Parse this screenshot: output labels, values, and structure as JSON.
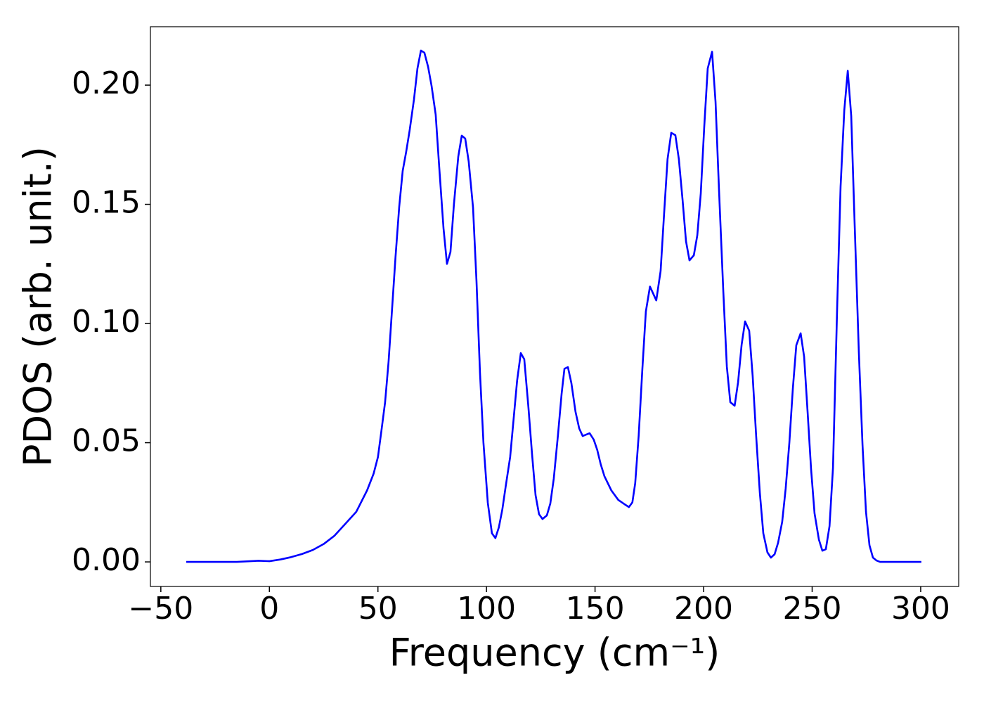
{
  "chart_data": {
    "type": "line",
    "xlabel": "Frequency (cm⁻¹)",
    "ylabel": "PDOS (arb. unit.)",
    "xlim": [
      -54.8,
      317.5
    ],
    "ylim": [
      -0.0103,
      0.2245
    ],
    "xticks": [
      {
        "value": -50,
        "label": "−50"
      },
      0,
      50,
      100,
      150,
      200,
      250,
      300
    ],
    "yticks": [
      {
        "value": 0,
        "label": "0.00"
      },
      {
        "value": 0.05,
        "label": "0.05"
      },
      {
        "value": 0.1,
        "label": "0.10"
      },
      {
        "value": 0.15,
        "label": "0.15"
      },
      {
        "value": 0.2,
        "label": "0.20"
      }
    ],
    "grid": false,
    "x": [
      -38.3,
      -15,
      -5,
      0,
      5,
      10,
      15,
      20,
      25,
      30,
      35,
      40,
      45,
      48,
      50.0,
      51.6,
      53.3,
      54.9,
      56.5,
      58.1,
      59.8,
      61.4,
      63.0,
      64.6,
      66.6,
      68.2,
      69.8,
      71.4,
      73.1,
      74.7,
      76.6,
      78.2,
      80.2,
      81.8,
      83.4,
      85.0,
      87.0,
      88.6,
      90.2,
      91.8,
      93.8,
      95.4,
      97.0,
      98.6,
      100.6,
      102.5,
      104.1,
      105.7,
      107.3,
      108.9,
      110.9,
      114.1,
      115.8,
      117.4,
      119.3,
      121.0,
      122.6,
      124.2,
      125.8,
      127.8,
      129.4,
      131.0,
      132.9,
      134.6,
      135.9,
      137.5,
      139.1,
      141.0,
      142.7,
      144.3,
      147.5,
      149.4,
      151.0,
      152.6,
      154.3,
      157.5,
      160.7,
      163.9,
      165.6,
      167.2,
      168.5,
      170.1,
      171.8,
      173.4,
      175.3,
      178.2,
      180.2,
      181.8,
      183.4,
      185.1,
      187.0,
      188.6,
      190.3,
      191.9,
      193.5,
      195.5,
      197.1,
      198.7,
      200.3,
      201.9,
      203.9,
      205.5,
      207.1,
      209.1,
      210.7,
      212.3,
      214.3,
      215.9,
      217.5,
      219.1,
      221.0,
      222.6,
      224.2,
      225.9,
      227.5,
      229.4,
      231.0,
      232.7,
      234.3,
      236.2,
      237.8,
      239.5,
      241.1,
      242.7,
      244.7,
      246.3,
      247.9,
      249.5,
      251.1,
      253.1,
      254.7,
      256.3,
      258.0,
      259.6,
      261.5,
      263.1,
      264.8,
      266.4,
      268.0,
      269.6,
      271.5,
      273.2,
      274.8,
      276.4,
      278.0,
      279.6,
      281.3,
      300.3
    ],
    "series": [
      {
        "color": "#0000ff",
        "values": [
          0,
          0,
          0.0005,
          0.0003,
          0.001,
          0.002,
          0.0033,
          0.005,
          0.0075,
          0.011,
          0.016,
          0.021,
          0.03,
          0.037,
          0.044,
          0.055,
          0.067,
          0.084,
          0.106,
          0.128,
          0.149,
          0.164,
          0.172,
          0.181,
          0.194,
          0.207,
          0.2145,
          0.2136,
          0.2077,
          0.1997,
          0.1876,
          0.166,
          0.14,
          0.125,
          0.13,
          0.15,
          0.17,
          0.1788,
          0.1776,
          0.168,
          0.1487,
          0.1177,
          0.0794,
          0.05,
          0.0248,
          0.012,
          0.01,
          0.0145,
          0.022,
          0.032,
          0.044,
          0.076,
          0.0876,
          0.085,
          0.065,
          0.045,
          0.028,
          0.02,
          0.018,
          0.0195,
          0.0245,
          0.035,
          0.053,
          0.0705,
          0.081,
          0.0817,
          0.075,
          0.063,
          0.056,
          0.0528,
          0.054,
          0.0513,
          0.047,
          0.041,
          0.036,
          0.03,
          0.026,
          0.024,
          0.023,
          0.025,
          0.033,
          0.053,
          0.081,
          0.105,
          0.1155,
          0.1097,
          0.122,
          0.146,
          0.169,
          0.18,
          0.179,
          0.169,
          0.152,
          0.1345,
          0.1265,
          0.1286,
          0.137,
          0.1546,
          0.1826,
          0.207,
          0.214,
          0.193,
          0.156,
          0.113,
          0.082,
          0.067,
          0.0655,
          0.0755,
          0.091,
          0.1009,
          0.097,
          0.078,
          0.053,
          0.029,
          0.012,
          0.004,
          0.0018,
          0.0032,
          0.008,
          0.0168,
          0.0307,
          0.05,
          0.0726,
          0.0909,
          0.0959,
          0.0861,
          0.063,
          0.039,
          0.0204,
          0.0094,
          0.0047,
          0.0053,
          0.015,
          0.0395,
          0.106,
          0.1575,
          0.1894,
          0.206,
          0.187,
          0.141,
          0.0882,
          0.049,
          0.021,
          0.007,
          0.0018,
          0.0006,
          0,
          0
        ]
      }
    ]
  }
}
